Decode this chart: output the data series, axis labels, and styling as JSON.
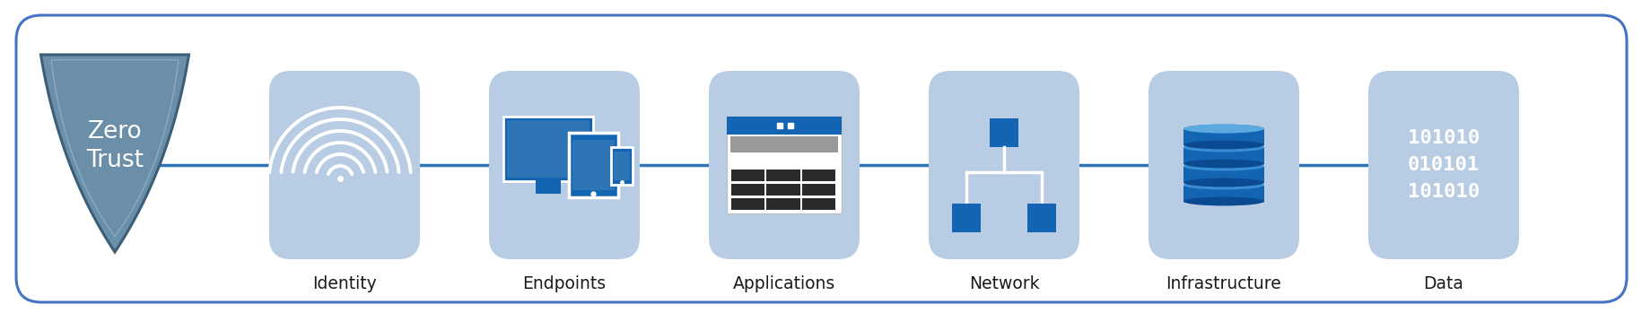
{
  "bg_color": "#ffffff",
  "outer_box_edge_color": "#4472c4",
  "box_fill_color": "#b8cce4",
  "shield_fill_color": "#6b8fa8",
  "shield_edge_color": "#3a5f78",
  "shield_inner_edge": "#8aacbf",
  "line_color": "#2e75b6",
  "icon_blue": "#1464b4",
  "icon_blue2": "#2e75b6",
  "icon_white": "#ffffff",
  "text_color": "#1a1a1a",
  "shield_text_color": "#ffffff",
  "pillars": [
    "Identity",
    "Endpoints",
    "Applications",
    "Network",
    "Infrastructure",
    "Data"
  ],
  "shield_label": "Zero\nTrust",
  "data_text": "101010\n010101\n101010",
  "label_fontsize": 13.5,
  "shield_fontsize": 19,
  "data_fontsize": 16
}
